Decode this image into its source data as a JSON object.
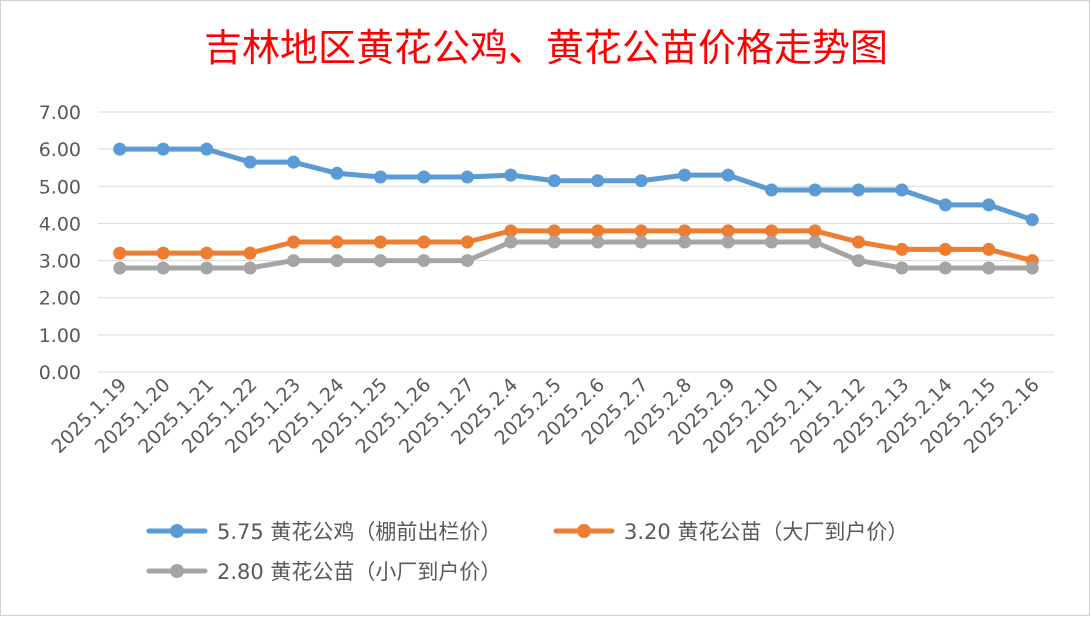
{
  "chart_data": {
    "type": "line",
    "title": "吉林地区黄花公鸡、黄花公苗价格走势图",
    "categories": [
      "2025.1.19",
      "2025.1.20",
      "2025.1.21",
      "2025.1.22",
      "2025.1.23",
      "2025.1.24",
      "2025.1.25",
      "2025.1.26",
      "2025.1.27",
      "2025.2.4",
      "2025.2.5",
      "2025.2.6",
      "2025.2.7",
      "2025.2.8",
      "2025.2.9",
      "2025.2.10",
      "2025.2.11",
      "2025.2.12",
      "2025.2.13",
      "2025.2.14",
      "2025.2.15",
      "2025.2.16"
    ],
    "ylim": [
      0,
      7
    ],
    "yticks": [
      "0.00",
      "1.00",
      "2.00",
      "3.00",
      "4.00",
      "5.00",
      "6.00",
      "7.00"
    ],
    "grid": true,
    "legend_position": "bottom",
    "series": [
      {
        "name": "5.75 黄花公鸡（棚前出栏价）",
        "color": "#5b9bd5",
        "values": [
          6.0,
          6.0,
          6.0,
          5.65,
          5.65,
          5.35,
          5.25,
          5.25,
          5.25,
          5.3,
          5.15,
          5.15,
          5.15,
          5.3,
          5.3,
          4.9,
          4.9,
          4.9,
          4.9,
          4.5,
          4.5,
          4.1
        ]
      },
      {
        "name": "3.20 黄花公苗（大厂到户价）",
        "color": "#ed7d31",
        "values": [
          3.2,
          3.2,
          3.2,
          3.2,
          3.5,
          3.5,
          3.5,
          3.5,
          3.5,
          3.8,
          3.8,
          3.8,
          3.8,
          3.8,
          3.8,
          3.8,
          3.8,
          3.5,
          3.3,
          3.3,
          3.3,
          3.0
        ]
      },
      {
        "name": "2.80 黄花公苗（小厂到户价）",
        "color": "#a5a5a5",
        "values": [
          2.8,
          2.8,
          2.8,
          2.8,
          3.0,
          3.0,
          3.0,
          3.0,
          3.0,
          3.5,
          3.5,
          3.5,
          3.5,
          3.5,
          3.5,
          3.5,
          3.5,
          3.0,
          2.8,
          2.8,
          2.8,
          2.8
        ]
      }
    ]
  }
}
